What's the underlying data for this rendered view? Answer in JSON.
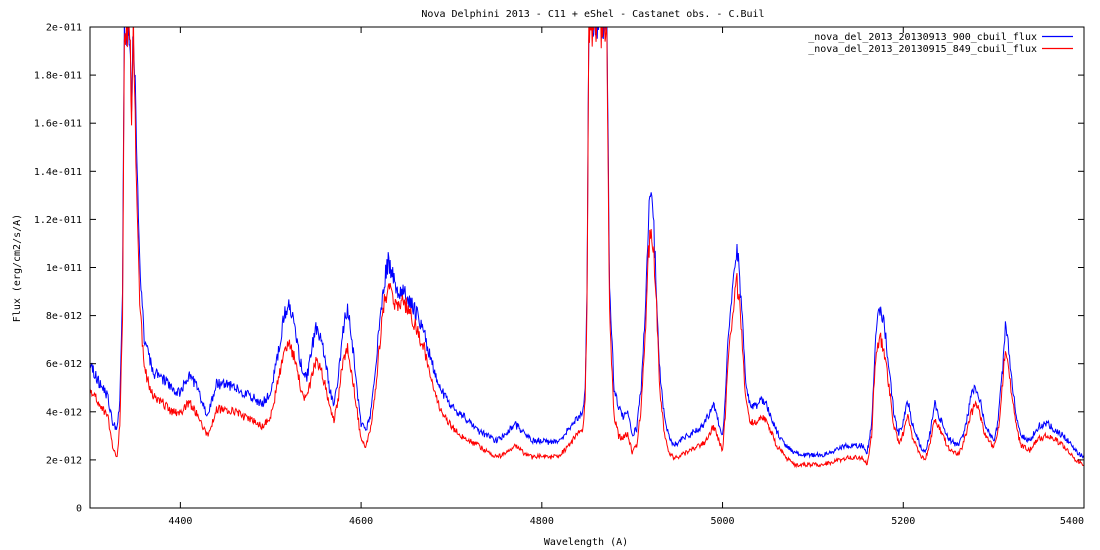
{
  "chart_data": {
    "type": "line",
    "title": "Nova Delphini 2013 - C11 + eShel - Castanet obs. - C.Buil",
    "xlabel": "Wavelength (A)",
    "ylabel": "Flux (erg/cm2/s/A)",
    "xlim": [
      4300,
      5400
    ],
    "ylim": [
      0,
      2e-11
    ],
    "x_ticks": [
      4400,
      4600,
      4800,
      5000,
      5200,
      5400
    ],
    "x_tick_labels": [
      "4400",
      "4600",
      "4800",
      "5000",
      "5200",
      "5400"
    ],
    "y_ticks": [
      0,
      2e-12,
      4e-12,
      6e-12,
      8e-12,
      1e-11,
      1.2e-11,
      1.4e-11,
      1.6e-11,
      1.8e-11,
      2e-11
    ],
    "y_tick_labels": [
      "0",
      "2e-012",
      "4e-012",
      "6e-012",
      "8e-012",
      "1e-011",
      "1.2e-011",
      "1.4e-011",
      "1.6e-011",
      "1.8e-011",
      "2e-011"
    ],
    "grid": false,
    "legend_position": "top-right",
    "series": [
      {
        "name": "_nova_del_2013_20130913_900_cbuil_flux",
        "color": "#0000ff",
        "x": [
          4300,
          4310,
          4320,
          4325,
          4330,
          4333,
          4336,
          4338,
          4340,
          4342,
          4344,
          4346,
          4348,
          4350,
          4355,
          4360,
          4370,
          4380,
          4390,
          4400,
          4410,
          4420,
          4430,
          4440,
          4450,
          4460,
          4470,
          4480,
          4490,
          4500,
          4510,
          4515,
          4520,
          4525,
          4530,
          4535,
          4540,
          4545,
          4550,
          4555,
          4560,
          4565,
          4570,
          4575,
          4580,
          4585,
          4590,
          4595,
          4600,
          4605,
          4610,
          4615,
          4620,
          4625,
          4630,
          4635,
          4640,
          4645,
          4650,
          4655,
          4660,
          4670,
          4680,
          4690,
          4700,
          4710,
          4720,
          4730,
          4740,
          4750,
          4760,
          4770,
          4780,
          4790,
          4800,
          4810,
          4820,
          4830,
          4840,
          4845,
          4848,
          4850,
          4852,
          4855,
          4858,
          4860,
          4862,
          4865,
          4868,
          4870,
          4872,
          4875,
          4880,
          4885,
          4890,
          4895,
          4900,
          4905,
          4910,
          4915,
          4918,
          4921,
          4924,
          4927,
          4930,
          4935,
          4940,
          4945,
          4950,
          4960,
          4970,
          4980,
          4990,
          5000,
          5003,
          5006,
          5010,
          5013,
          5016,
          5019,
          5022,
          5025,
          5030,
          5035,
          5040,
          5045,
          5050,
          5060,
          5070,
          5080,
          5090,
          5100,
          5110,
          5120,
          5130,
          5140,
          5150,
          5155,
          5160,
          5165,
          5168,
          5171,
          5175,
          5180,
          5185,
          5190,
          5195,
          5200,
          5205,
          5210,
          5220,
          5225,
          5230,
          5235,
          5240,
          5250,
          5260,
          5265,
          5270,
          5275,
          5280,
          5285,
          5290,
          5300,
          5305,
          5310,
          5313,
          5316,
          5320,
          5325,
          5330,
          5340,
          5350,
          5360,
          5370,
          5380,
          5390,
          5400
        ],
        "y": [
          6e-12,
          5.2e-12,
          4.6e-12,
          3.5e-12,
          3.3e-12,
          4.5e-12,
          9e-12,
          2e-11,
          2e-11,
          2e-11,
          2e-11,
          1.7e-11,
          2e-11,
          1.75e-11,
          1e-11,
          7e-12,
          5.6e-12,
          5.4e-12,
          5e-12,
          4.8e-12,
          5.6e-12,
          4.9e-12,
          3.8e-12,
          5.2e-12,
          5.1e-12,
          5.1e-12,
          4.8e-12,
          4.6e-12,
          4.3e-12,
          4.8e-12,
          6.8e-12,
          8e-12,
          8.3e-12,
          7.8e-12,
          6.8e-12,
          5.6e-12,
          5.4e-12,
          6.5e-12,
          7.6e-12,
          7e-12,
          6.3e-12,
          5e-12,
          4.2e-12,
          5.5e-12,
          7.5e-12,
          8.2e-12,
          7e-12,
          5e-12,
          3.5e-12,
          3.2e-12,
          3.8e-12,
          5.5e-12,
          7.5e-12,
          9.3e-12,
          1.02e-11,
          9.6e-12,
          8.9e-12,
          9e-12,
          8.9e-12,
          8.5e-12,
          8.2e-12,
          7.2e-12,
          5.8e-12,
          4.8e-12,
          4.2e-12,
          3.9e-12,
          3.6e-12,
          3.2e-12,
          3e-12,
          2.8e-12,
          3.1e-12,
          3.5e-12,
          3.1e-12,
          2.8e-12,
          2.8e-12,
          2.7e-12,
          2.8e-12,
          3.3e-12,
          3.8e-12,
          3.9e-12,
          5e-12,
          9e-12,
          2e-11,
          2e-11,
          2e-11,
          2e-11,
          2e-11,
          2e-11,
          2e-11,
          2e-11,
          2e-11,
          9e-12,
          5e-12,
          4.2e-12,
          3.8e-12,
          4e-12,
          3e-12,
          3.3e-12,
          5e-12,
          8.5e-12,
          1.2e-11,
          1.33e-11,
          1.15e-11,
          9e-12,
          6e-12,
          4e-12,
          3e-12,
          2.6e-12,
          2.7e-12,
          3e-12,
          3.2e-12,
          3.5e-12,
          4.3e-12,
          3e-12,
          4.5e-12,
          7e-12,
          8.5e-12,
          1.02e-11,
          1.1e-11,
          9.5e-12,
          7.8e-12,
          5.5e-12,
          4.3e-12,
          4.2e-12,
          4.4e-12,
          4.5e-12,
          4.2e-12,
          3.2e-12,
          2.6e-12,
          2.3e-12,
          2.2e-12,
          2.2e-12,
          2.2e-12,
          2.3e-12,
          2.5e-12,
          2.6e-12,
          2.6e-12,
          2.6e-12,
          2.3e-12,
          3.5e-12,
          6e-12,
          7.8e-12,
          8.3e-12,
          7.3e-12,
          5.5e-12,
          3.8e-12,
          3.1e-12,
          3.6e-12,
          4.5e-12,
          3.5e-12,
          2.5e-12,
          2.4e-12,
          3.2e-12,
          4.3e-12,
          3.8e-12,
          2.9e-12,
          2.6e-12,
          2.9e-12,
          3.6e-12,
          4.6e-12,
          5.1e-12,
          4.5e-12,
          3.5e-12,
          2.8e-12,
          3.6e-12,
          5.8e-12,
          7.5e-12,
          6.8e-12,
          5.3e-12,
          3.8e-12,
          3e-12,
          2.8e-12,
          3.4e-12,
          3.5e-12,
          3.2e-12,
          2.9e-12,
          2.4e-12,
          2.1e-12
        ]
      },
      {
        "name": "_nova_del_2013_20130915_849_cbuil_flux",
        "color": "#ff0000",
        "x": [
          4300,
          4310,
          4320,
          4325,
          4330,
          4333,
          4336,
          4338,
          4340,
          4342,
          4344,
          4346,
          4348,
          4350,
          4355,
          4360,
          4370,
          4380,
          4390,
          4400,
          4410,
          4420,
          4430,
          4440,
          4450,
          4460,
          4470,
          4480,
          4490,
          4500,
          4510,
          4515,
          4520,
          4525,
          4530,
          4535,
          4540,
          4545,
          4550,
          4555,
          4560,
          4565,
          4570,
          4575,
          4580,
          4585,
          4590,
          4595,
          4600,
          4605,
          4610,
          4615,
          4620,
          4625,
          4630,
          4635,
          4640,
          4645,
          4650,
          4655,
          4660,
          4670,
          4680,
          4690,
          4700,
          4710,
          4720,
          4730,
          4740,
          4750,
          4760,
          4770,
          4780,
          4790,
          4800,
          4810,
          4820,
          4830,
          4840,
          4845,
          4848,
          4850,
          4852,
          4855,
          4858,
          4860,
          4862,
          4865,
          4868,
          4870,
          4872,
          4875,
          4880,
          4885,
          4890,
          4895,
          4900,
          4905,
          4910,
          4915,
          4918,
          4921,
          4924,
          4927,
          4930,
          4935,
          4940,
          4945,
          4950,
          4960,
          4970,
          4980,
          4990,
          5000,
          5003,
          5006,
          5010,
          5013,
          5016,
          5019,
          5022,
          5025,
          5030,
          5035,
          5040,
          5045,
          5050,
          5060,
          5070,
          5080,
          5090,
          5100,
          5110,
          5120,
          5130,
          5140,
          5150,
          5155,
          5160,
          5165,
          5168,
          5171,
          5175,
          5180,
          5185,
          5190,
          5195,
          5200,
          5205,
          5210,
          5220,
          5225,
          5230,
          5235,
          5240,
          5250,
          5260,
          5265,
          5270,
          5275,
          5280,
          5285,
          5290,
          5300,
          5305,
          5310,
          5313,
          5316,
          5320,
          5325,
          5330,
          5340,
          5350,
          5360,
          5370,
          5380,
          5390,
          5400
        ],
        "y": [
          5e-12,
          4.3e-12,
          3.8e-12,
          2.5e-12,
          2.1e-12,
          3.5e-12,
          8e-12,
          2e-11,
          2e-11,
          2e-11,
          2e-11,
          1.6e-11,
          2e-11,
          1.6e-11,
          8.5e-12,
          5.8e-12,
          4.6e-12,
          4.4e-12,
          4e-12,
          3.9e-12,
          4.4e-12,
          3.8e-12,
          3e-12,
          4.1e-12,
          4.1e-12,
          4e-12,
          3.8e-12,
          3.7e-12,
          3.4e-12,
          3.8e-12,
          5.6e-12,
          6.6e-12,
          6.8e-12,
          6.4e-12,
          5.6e-12,
          4.7e-12,
          4.5e-12,
          5.4e-12,
          6.2e-12,
          5.8e-12,
          5.2e-12,
          4.2e-12,
          3.6e-12,
          4.6e-12,
          6.2e-12,
          6.6e-12,
          5.6e-12,
          4.2e-12,
          2.8e-12,
          2.6e-12,
          3.2e-12,
          4.6e-12,
          6.6e-12,
          8.4e-12,
          9.2e-12,
          8.8e-12,
          8.4e-12,
          8.6e-12,
          8.4e-12,
          8e-12,
          7.6e-12,
          6.6e-12,
          5e-12,
          3.9e-12,
          3.4e-12,
          3e-12,
          2.8e-12,
          2.6e-12,
          2.3e-12,
          2.1e-12,
          2.3e-12,
          2.6e-12,
          2.3e-12,
          2.1e-12,
          2.2e-12,
          2.1e-12,
          2.2e-12,
          2.6e-12,
          3.1e-12,
          3.2e-12,
          4.5e-12,
          8.5e-12,
          2e-11,
          2e-11,
          2e-11,
          2e-11,
          2e-11,
          2e-11,
          2e-11,
          2e-11,
          2e-11,
          8e-12,
          3.8e-12,
          3e-12,
          2.9e-12,
          3.1e-12,
          2.3e-12,
          2.6e-12,
          4.2e-12,
          7.8e-12,
          1.05e-11,
          1.18e-11,
          1.05e-11,
          8.5e-12,
          5.2e-12,
          3.3e-12,
          2.4e-12,
          2.1e-12,
          2.1e-12,
          2.3e-12,
          2.5e-12,
          2.7e-12,
          3.4e-12,
          2.4e-12,
          3.8e-12,
          6e-12,
          7.5e-12,
          8.8e-12,
          9.4e-12,
          8.3e-12,
          6.8e-12,
          4.8e-12,
          3.6e-12,
          3.5e-12,
          3.7e-12,
          3.8e-12,
          3.5e-12,
          2.6e-12,
          2.1e-12,
          1.8e-12,
          1.8e-12,
          1.8e-12,
          1.8e-12,
          1.9e-12,
          2e-12,
          2.1e-12,
          2.1e-12,
          2.1e-12,
          1.8e-12,
          3e-12,
          5.4e-12,
          6.8e-12,
          7e-12,
          6.2e-12,
          4.8e-12,
          3.3e-12,
          2.7e-12,
          3.1e-12,
          3.9e-12,
          3e-12,
          2.1e-12,
          2.1e-12,
          2.8e-12,
          3.7e-12,
          3.3e-12,
          2.5e-12,
          2.2e-12,
          2.5e-12,
          3.1e-12,
          3.9e-12,
          4.4e-12,
          3.9e-12,
          3.1e-12,
          2.5e-12,
          3.2e-12,
          5.2e-12,
          6.7e-12,
          6.2e-12,
          4.7e-12,
          3.4e-12,
          2.6e-12,
          2.4e-12,
          2.9e-12,
          3e-12,
          2.8e-12,
          2.5e-12,
          2e-12,
          1.8e-12
        ]
      }
    ]
  }
}
